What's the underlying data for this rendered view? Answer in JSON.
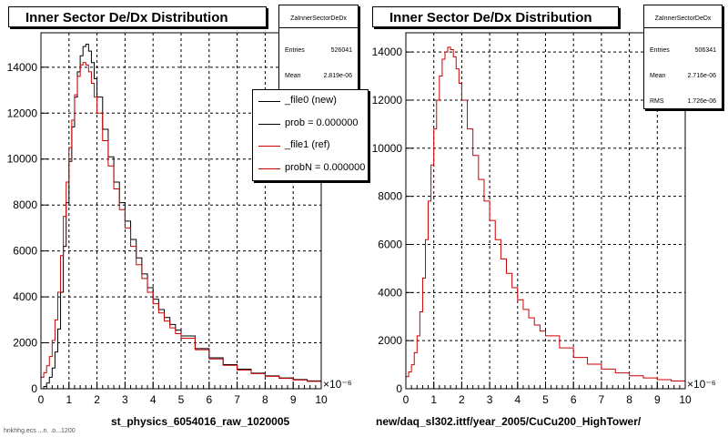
{
  "colors": {
    "new": "#000000",
    "ref": "#cc0000",
    "grid": "#000000"
  },
  "chart_data": [
    {
      "type": "line",
      "title": "Inner Sector De/Dx Distribution",
      "subtitle": "st_physics_6054016_raw_1020005",
      "xlim": [
        0,
        10
      ],
      "ylim": [
        0,
        15500
      ],
      "x_multiplier": "×10⁻⁶",
      "x_ticks": [
        "0",
        "1",
        "2",
        "3",
        "4",
        "5",
        "6",
        "7",
        "8",
        "9",
        "10"
      ],
      "y_ticks": [
        "0",
        "2000",
        "4000",
        "6000",
        "8000",
        "10000",
        "12000",
        "14000"
      ],
      "grid": true,
      "stats": {
        "name": "ZaInnerSectorDeDx",
        "entries_label": "Entries",
        "entries": "526041",
        "mean_label": "Mean",
        "mean": "2.819e-06"
      },
      "legend": [
        {
          "label": "_file0 (new)",
          "color": "#000000"
        },
        {
          "label": "prob = 0.000000",
          "color": "#000000"
        },
        {
          "label": "_file1 (ref)",
          "color": "#cc0000"
        },
        {
          "label": "probN = 0.000000",
          "color": "#cc0000"
        }
      ],
      "series": [
        {
          "name": "_file0 (new)",
          "color": "#000000",
          "x": [
            0,
            0.1,
            0.2,
            0.3,
            0.4,
            0.5,
            0.6,
            0.7,
            0.8,
            0.9,
            1.0,
            1.1,
            1.2,
            1.3,
            1.4,
            1.5,
            1.6,
            1.7,
            1.8,
            1.9,
            2.0,
            2.2,
            2.4,
            2.6,
            2.8,
            3.0,
            3.2,
            3.4,
            3.6,
            3.8,
            4.0,
            4.2,
            4.4,
            4.6,
            4.8,
            5.0,
            5.5,
            6.0,
            6.5,
            7.0,
            7.5,
            8.0,
            8.5,
            9.0,
            9.5,
            10.0
          ],
          "y": [
            0,
            100,
            250,
            500,
            900,
            1600,
            2600,
            4200,
            6200,
            8100,
            9900,
            11400,
            12700,
            13800,
            14500,
            14900,
            15000,
            14700,
            14200,
            13500,
            12700,
            11300,
            10100,
            9000,
            8100,
            7300,
            6500,
            5700,
            5000,
            4400,
            3900,
            3450,
            3100,
            2800,
            2550,
            2300,
            1750,
            1350,
            1050,
            850,
            680,
            560,
            470,
            400,
            340,
            300
          ]
        },
        {
          "name": "_file1 (ref)",
          "color": "#cc0000",
          "x": [
            0,
            0.1,
            0.2,
            0.3,
            0.4,
            0.5,
            0.6,
            0.7,
            0.8,
            0.9,
            1.0,
            1.1,
            1.2,
            1.3,
            1.4,
            1.5,
            1.6,
            1.7,
            1.8,
            1.9,
            2.0,
            2.2,
            2.4,
            2.6,
            2.8,
            3.0,
            3.2,
            3.4,
            3.6,
            3.8,
            4.0,
            4.2,
            4.4,
            4.6,
            4.8,
            5.0,
            5.5,
            6.0,
            6.5,
            7.0,
            7.5,
            8.0,
            8.5,
            9.0,
            9.5,
            10.0
          ],
          "y": [
            500,
            700,
            1000,
            1400,
            2100,
            3000,
            4200,
            5800,
            7500,
            9000,
            10500,
            11700,
            12800,
            13600,
            14100,
            14200,
            14100,
            13800,
            13300,
            12700,
            12000,
            10800,
            9700,
            8700,
            7800,
            7000,
            6200,
            5400,
            4800,
            4200,
            3700,
            3300,
            2950,
            2650,
            2400,
            2200,
            1700,
            1300,
            1020,
            820,
            660,
            540,
            450,
            380,
            320,
            280
          ]
        }
      ]
    },
    {
      "type": "line",
      "title": "Inner Sector De/Dx Distribution",
      "subtitle": "new/daq_sl302.ittf/year_2005/CuCu200_HighTower/",
      "xlim": [
        0,
        10
      ],
      "ylim": [
        0,
        14800
      ],
      "x_multiplier": "×10⁻⁶",
      "x_ticks": [
        "0",
        "1",
        "2",
        "3",
        "4",
        "5",
        "6",
        "7",
        "8",
        "9",
        "10"
      ],
      "y_ticks": [
        "0",
        "2000",
        "4000",
        "6000",
        "8000",
        "10000",
        "12000",
        "14000"
      ],
      "grid": true,
      "stats": {
        "name": "ZaInnerSectorDeDx",
        "entries_label": "Entries",
        "entries": "506341",
        "mean_label": "Mean",
        "mean": "2.716e-06",
        "rms_label": "RMS",
        "rms": "1.726e-06"
      },
      "series": [
        {
          "name": "",
          "color": "#cc0000",
          "x": [
            0,
            0.1,
            0.2,
            0.3,
            0.4,
            0.5,
            0.6,
            0.7,
            0.8,
            0.9,
            1.0,
            1.1,
            1.2,
            1.3,
            1.4,
            1.5,
            1.6,
            1.7,
            1.8,
            1.9,
            2.0,
            2.2,
            2.4,
            2.6,
            2.8,
            3.0,
            3.2,
            3.4,
            3.6,
            3.8,
            4.0,
            4.2,
            4.4,
            4.6,
            4.8,
            5.0,
            5.5,
            6.0,
            6.5,
            7.0,
            7.5,
            8.0,
            8.5,
            9.0,
            9.5,
            10.0
          ],
          "y": [
            500,
            700,
            1000,
            1500,
            2200,
            3200,
            4600,
            6200,
            7800,
            9300,
            10800,
            12000,
            13000,
            13700,
            14000,
            14200,
            14100,
            13800,
            13300,
            12700,
            12000,
            10800,
            9700,
            8700,
            7800,
            7000,
            6200,
            5400,
            4800,
            4200,
            3700,
            3300,
            2950,
            2650,
            2400,
            2200,
            1700,
            1300,
            1020,
            820,
            660,
            540,
            450,
            380,
            320,
            280
          ]
        }
      ]
    }
  ],
  "footer_scribble": "hnkhhg.ecs ...n. .o...1200"
}
